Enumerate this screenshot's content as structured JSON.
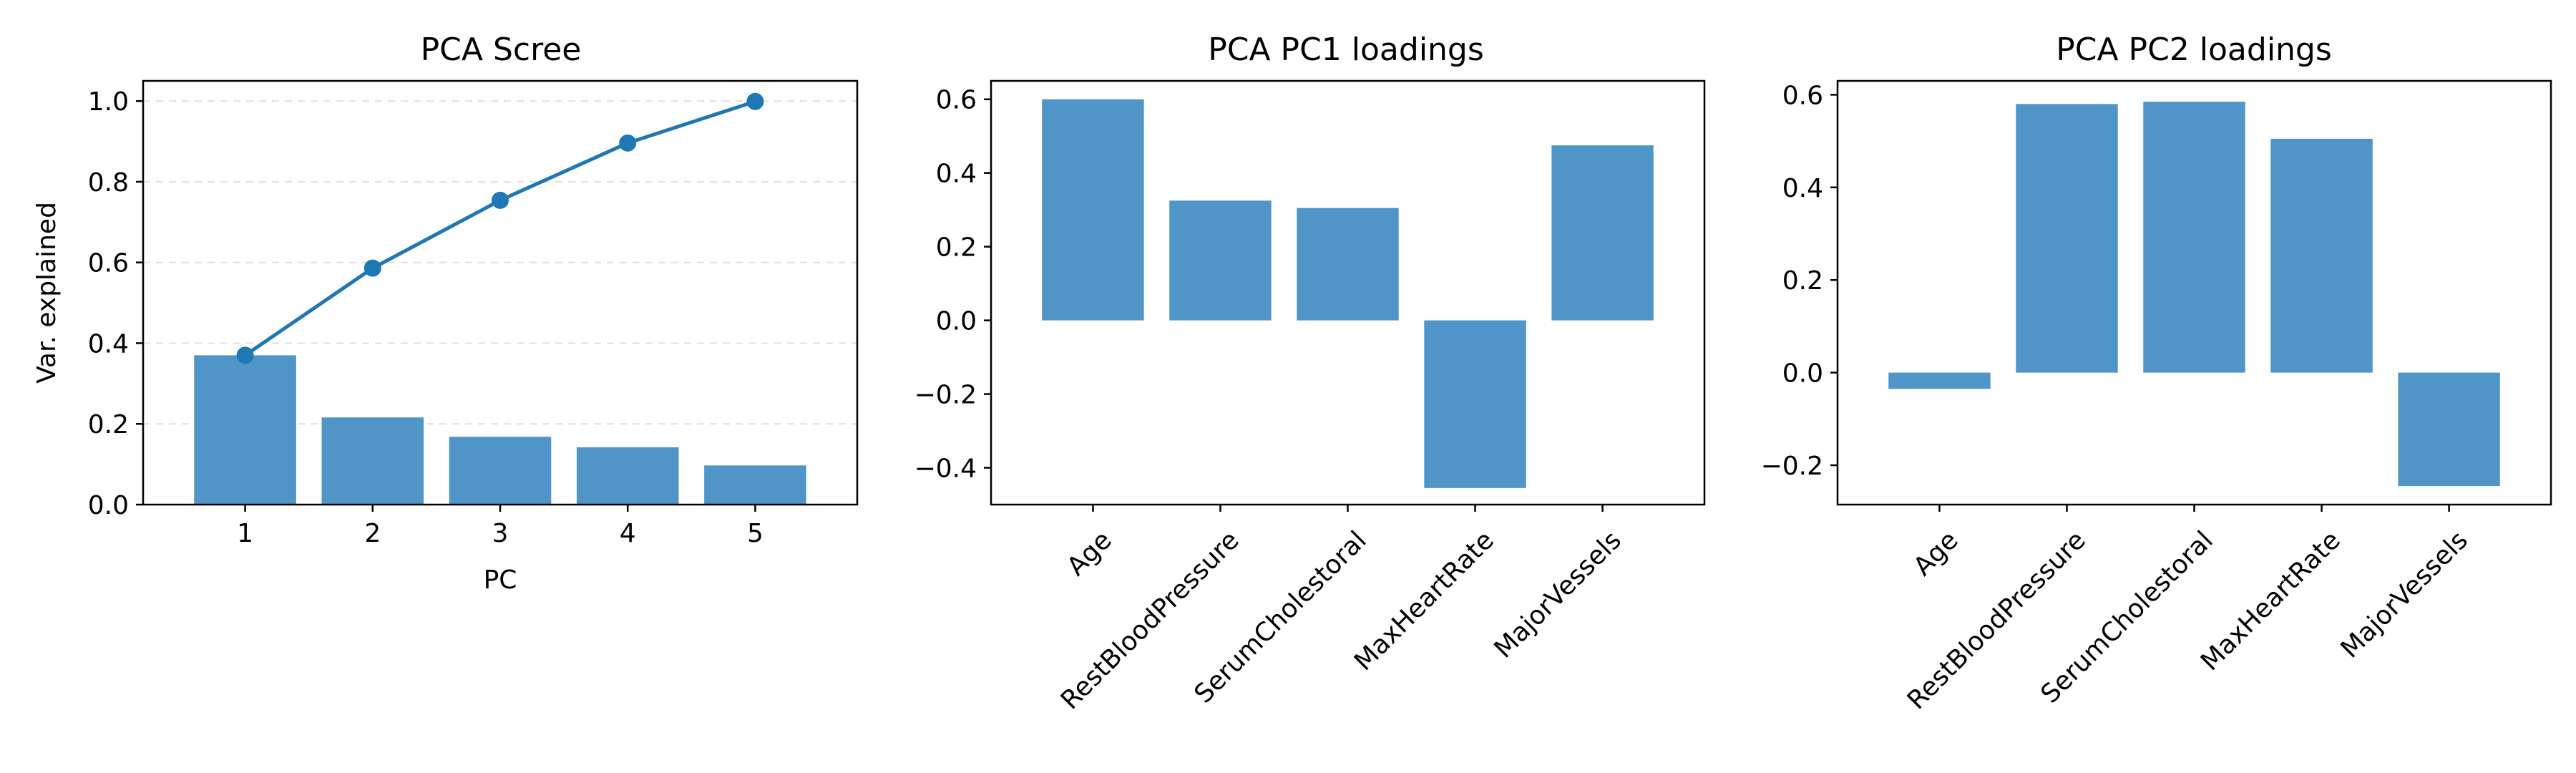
{
  "colors": {
    "bar": "#4f95c7",
    "line": "#1f77b4",
    "axis": "#000000"
  },
  "chart_data": [
    {
      "type": "bar",
      "title": "PCA Scree",
      "xlabel": "PC",
      "ylabel": "Var. explained",
      "categories": [
        "1",
        "2",
        "3",
        "4",
        "5"
      ],
      "series": [
        {
          "values": [
            0.37,
            0.216,
            0.168,
            0.142,
            0.097
          ]
        },
        {
          "type": "line",
          "markers": true,
          "values": [
            0.37,
            0.586,
            0.754,
            0.896,
            0.999
          ]
        }
      ],
      "ylim": [
        0,
        1.05
      ],
      "yticks": [
        "0.0",
        "0.2",
        "0.4",
        "0.6",
        "0.8",
        "1.0"
      ],
      "grid": "y"
    },
    {
      "type": "bar",
      "title": "PCA PC1 loadings",
      "categories": [
        "Age",
        "RestBloodPressure",
        "SerumCholestoral",
        "MaxHeartRate",
        "MajorVessels"
      ],
      "values": [
        0.6,
        0.325,
        0.305,
        -0.455,
        0.475
      ],
      "ylim": [
        -0.5,
        0.65
      ],
      "yticks": [
        "−0.4",
        "−0.2",
        "0.0",
        "0.2",
        "0.4",
        "0.6"
      ],
      "grid": "none"
    },
    {
      "type": "bar",
      "title": "PCA PC2 loadings",
      "categories": [
        "Age",
        "RestBloodPressure",
        "SerumCholestoral",
        "MaxHeartRate",
        "MajorVessels"
      ],
      "values": [
        -0.035,
        0.58,
        0.585,
        0.505,
        -0.245
      ],
      "ylim": [
        -0.285,
        0.63
      ],
      "yticks": [
        "−0.2",
        "0.0",
        "0.2",
        "0.4",
        "0.6"
      ],
      "grid": "none"
    }
  ]
}
